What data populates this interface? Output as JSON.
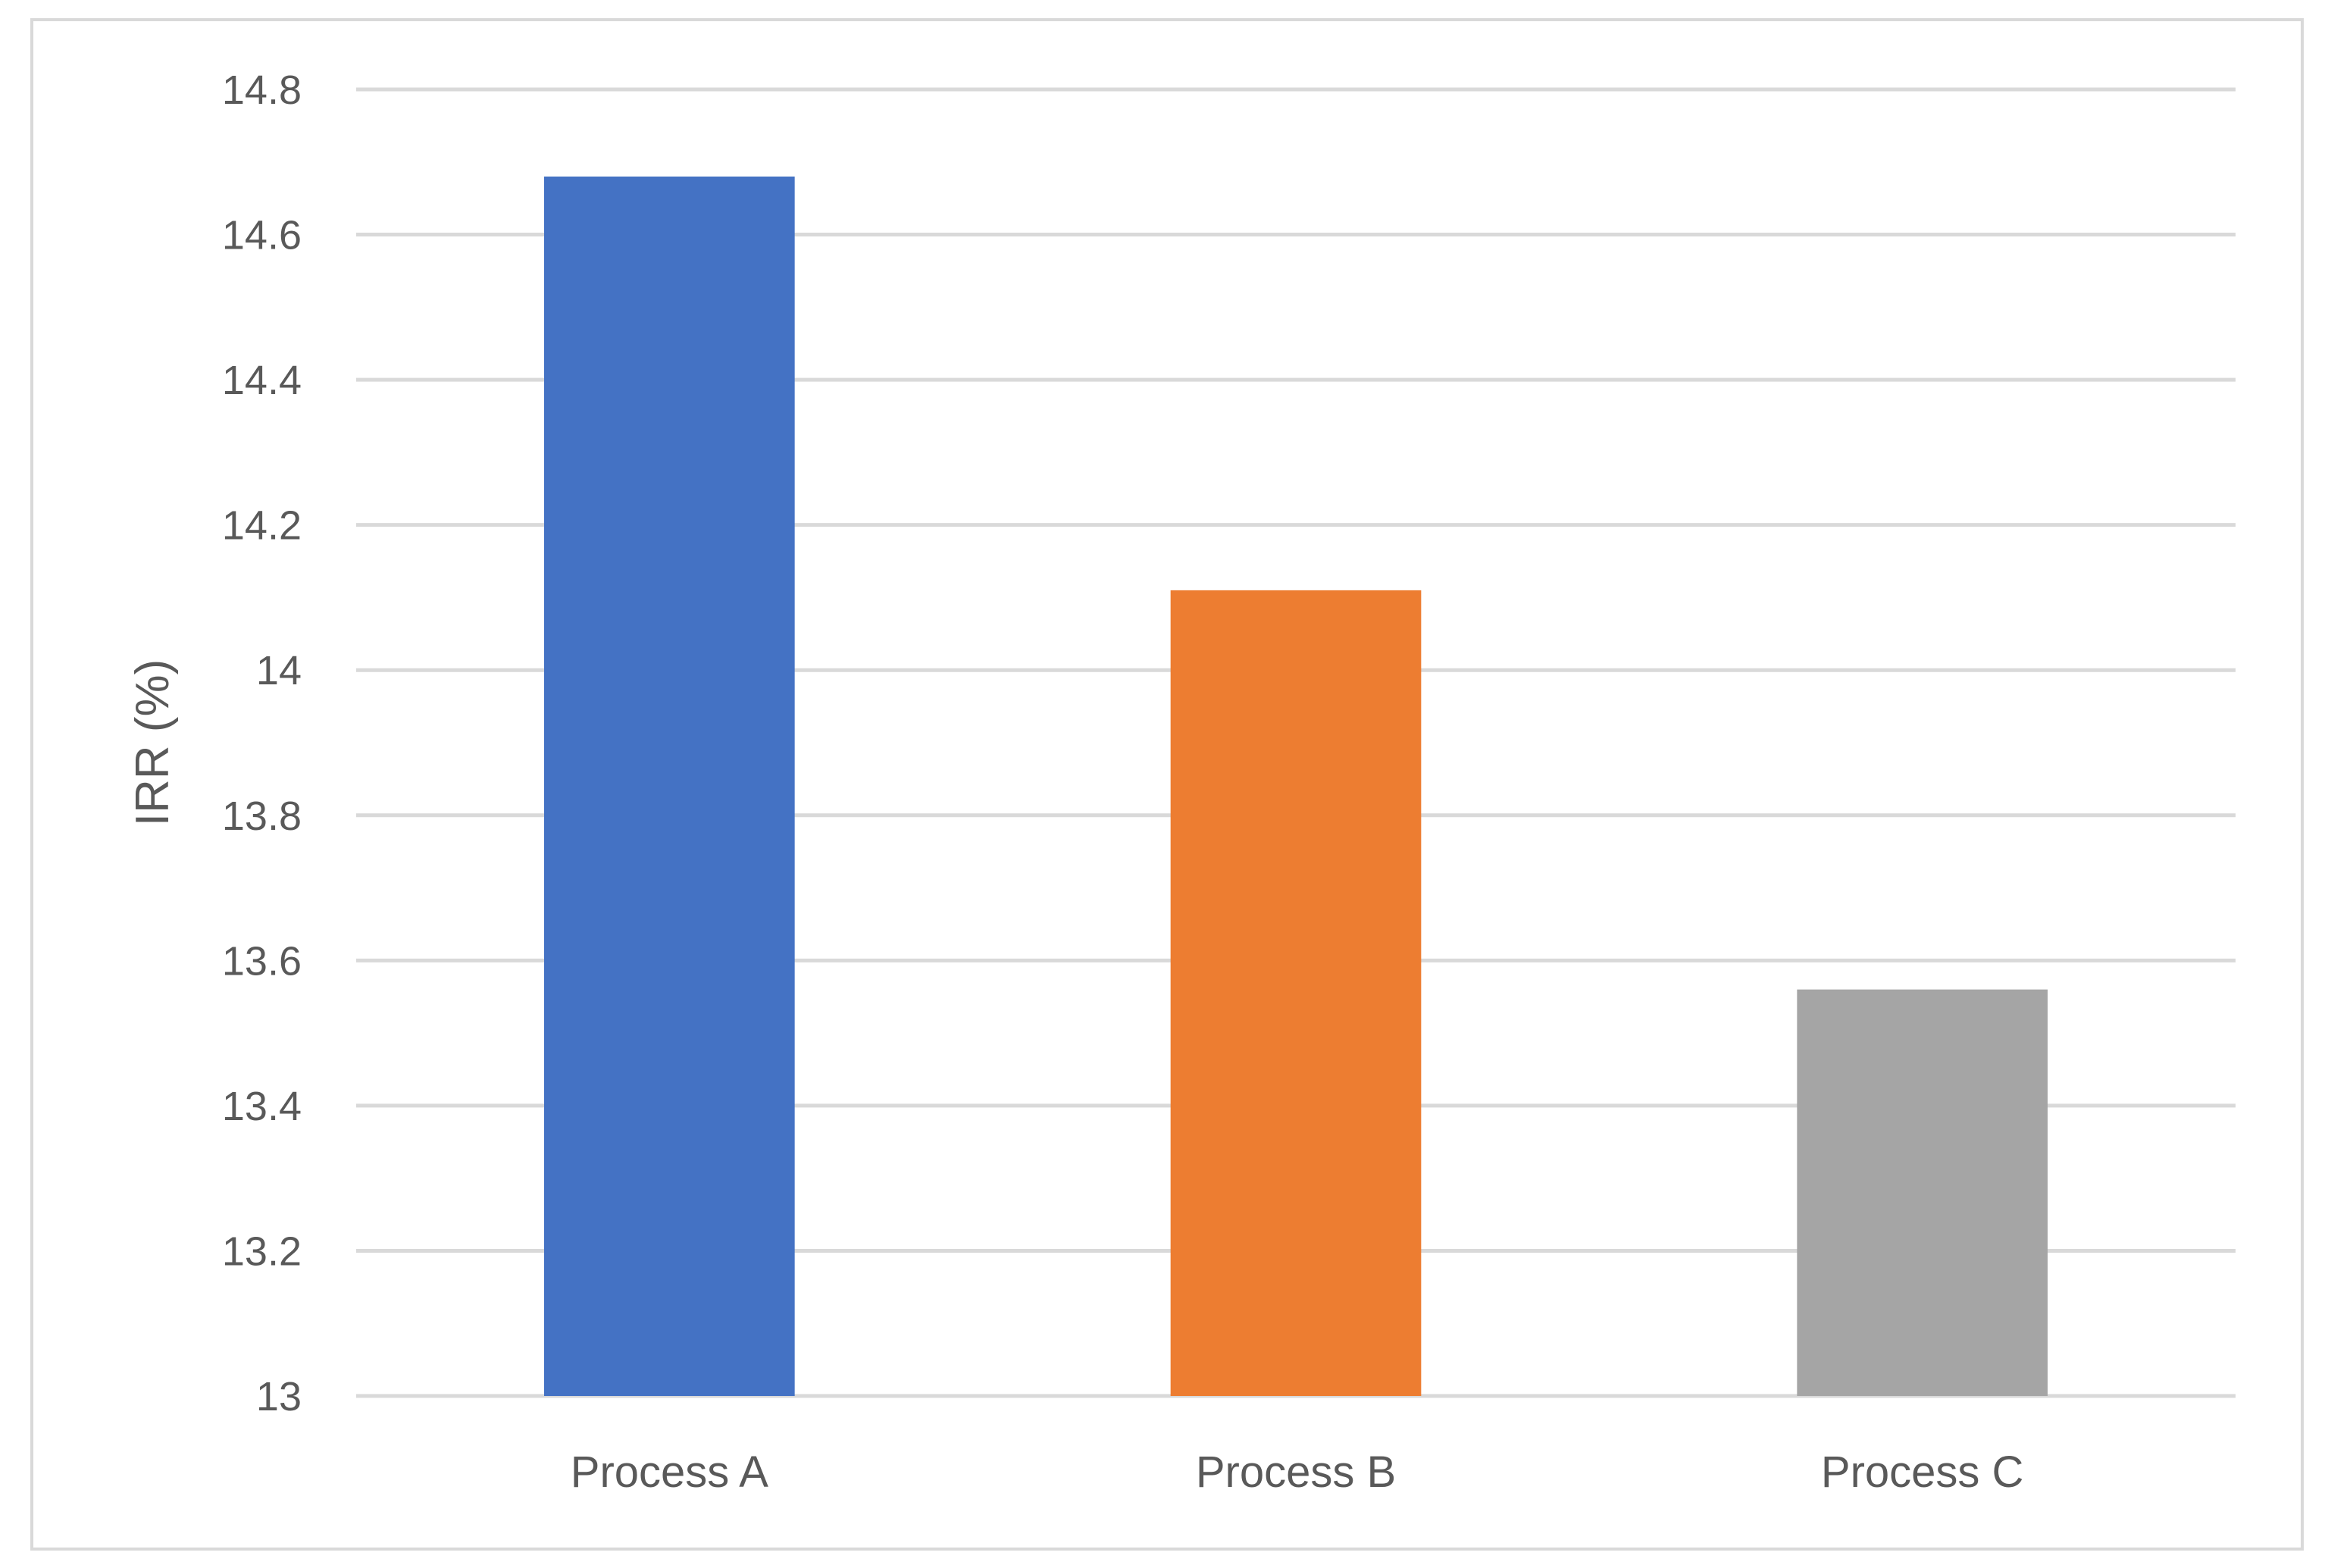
{
  "chart_data": {
    "type": "bar",
    "title": "",
    "xlabel": "",
    "ylabel": "IRR (%)",
    "categories": [
      "Process A",
      "Process B",
      "Process C"
    ],
    "values": [
      14.68,
      14.11,
      13.56
    ],
    "colors": [
      "#4472c4",
      "#ed7d31",
      "#a5a5a5"
    ],
    "ylim": [
      13,
      14.8
    ],
    "yticks": [
      13,
      13.2,
      13.4,
      13.6,
      13.8,
      14,
      14.2,
      14.4,
      14.6,
      14.8
    ],
    "ytick_labels": [
      "13",
      "13.2",
      "13.4",
      "13.6",
      "13.8",
      "14",
      "14.2",
      "14.4",
      "14.6",
      "14.8"
    ],
    "grid": true,
    "legend": "none"
  }
}
